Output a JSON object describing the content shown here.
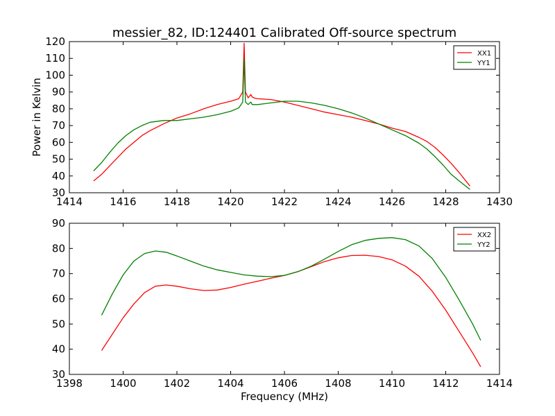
{
  "figure": {
    "title": "messier_82, ID:124401 Calibrated Off-source spectrum"
  },
  "chart_data": [
    {
      "type": "line",
      "title": "messier_82, ID:124401 Calibrated Off-source spectrum",
      "xlabel": "",
      "ylabel": "Power in Kelvin",
      "xlim": [
        1414,
        1430
      ],
      "ylim": [
        30,
        120
      ],
      "xticks": [
        1414,
        1416,
        1418,
        1420,
        1422,
        1424,
        1426,
        1428,
        1430
      ],
      "yticks": [
        30,
        40,
        50,
        60,
        70,
        80,
        90,
        100,
        110,
        120
      ],
      "grid": false,
      "legend_position": "top-right",
      "series": [
        {
          "name": "XX1",
          "color": "#ff0000",
          "x": [
            1414.9,
            1415.2,
            1415.5,
            1415.8,
            1416.1,
            1416.4,
            1416.7,
            1417.0,
            1417.5,
            1418.0,
            1418.5,
            1419.0,
            1419.5,
            1420.0,
            1420.3,
            1420.45,
            1420.5,
            1420.55,
            1420.65,
            1420.75,
            1420.8,
            1420.9,
            1421.0,
            1421.5,
            1422.0,
            1422.5,
            1423.0,
            1423.5,
            1424.0,
            1424.5,
            1425.0,
            1425.5,
            1426.0,
            1426.5,
            1427.0,
            1427.3,
            1427.6,
            1427.9,
            1428.2,
            1428.5,
            1428.9
          ],
          "values": [
            37,
            41,
            46,
            51,
            56,
            60,
            64,
            67,
            71,
            74.5,
            77,
            80,
            82.5,
            84.5,
            86,
            90,
            119,
            90,
            86.5,
            88.5,
            87,
            86.3,
            86,
            85.5,
            84,
            82,
            80,
            78,
            76.5,
            75,
            73,
            71,
            68.5,
            66.5,
            63,
            60.5,
            57,
            52.5,
            47.5,
            42,
            34
          ]
        },
        {
          "name": "YY1",
          "color": "#008000",
          "x": [
            1414.9,
            1415.2,
            1415.5,
            1415.8,
            1416.1,
            1416.4,
            1416.7,
            1417.0,
            1417.5,
            1418.0,
            1418.5,
            1419.0,
            1419.5,
            1420.0,
            1420.3,
            1420.45,
            1420.5,
            1420.55,
            1420.65,
            1420.75,
            1420.8,
            1420.9,
            1421.0,
            1421.5,
            1422.0,
            1422.5,
            1423.0,
            1423.5,
            1424.0,
            1424.5,
            1425.0,
            1425.5,
            1426.0,
            1426.5,
            1427.0,
            1427.3,
            1427.6,
            1427.9,
            1428.2,
            1428.5,
            1428.9
          ],
          "values": [
            43,
            48,
            54,
            59.5,
            64,
            67.5,
            70,
            72,
            73,
            73,
            74,
            75,
            76.5,
            78.5,
            80.5,
            84,
            110,
            84,
            82.5,
            84,
            82.5,
            82.5,
            82.5,
            83.5,
            84.5,
            84.5,
            83.5,
            82,
            80,
            77.5,
            74.5,
            71,
            67.5,
            64,
            59.5,
            56,
            51.5,
            46.5,
            41,
            37,
            32
          ]
        }
      ]
    },
    {
      "type": "line",
      "title": "",
      "xlabel": "Frequency (MHz)",
      "ylabel": "",
      "xlim": [
        1398,
        1414
      ],
      "ylim": [
        30,
        90
      ],
      "xticks": [
        1398,
        1400,
        1402,
        1404,
        1406,
        1408,
        1410,
        1412,
        1414
      ],
      "yticks": [
        30,
        40,
        50,
        60,
        70,
        80,
        90
      ],
      "grid": false,
      "legend_position": "top-right",
      "series": [
        {
          "name": "XX2",
          "color": "#ff0000",
          "x": [
            1399.2,
            1399.6,
            1400.0,
            1400.4,
            1400.8,
            1401.2,
            1401.6,
            1402.0,
            1402.5,
            1403.0,
            1403.5,
            1404.0,
            1404.5,
            1405.0,
            1405.5,
            1406.0,
            1406.5,
            1407.0,
            1407.5,
            1408.0,
            1408.5,
            1409.0,
            1409.5,
            1410.0,
            1410.5,
            1411.0,
            1411.5,
            1412.0,
            1412.5,
            1413.0,
            1413.3
          ],
          "values": [
            39.5,
            46,
            52.5,
            58,
            62.5,
            65,
            65.5,
            65,
            64,
            63.3,
            63.5,
            64.5,
            65.8,
            67,
            68.2,
            69.3,
            70.8,
            72.8,
            74.8,
            76.3,
            77.2,
            77.3,
            76.8,
            75.5,
            73,
            69,
            63,
            55.5,
            47,
            38.5,
            33
          ]
        },
        {
          "name": "YY2",
          "color": "#008000",
          "x": [
            1399.2,
            1399.6,
            1400.0,
            1400.4,
            1400.8,
            1401.2,
            1401.6,
            1402.0,
            1402.5,
            1403.0,
            1403.5,
            1404.0,
            1404.5,
            1405.0,
            1405.5,
            1406.0,
            1406.5,
            1407.0,
            1407.5,
            1408.0,
            1408.5,
            1409.0,
            1409.5,
            1410.0,
            1410.5,
            1411.0,
            1411.5,
            1412.0,
            1412.5,
            1413.0,
            1413.3
          ],
          "values": [
            53.5,
            62,
            69.5,
            75,
            78,
            79,
            78.5,
            77,
            75,
            73,
            71.5,
            70.5,
            69.5,
            69,
            68.8,
            69.3,
            70.8,
            73,
            75.8,
            78.8,
            81.5,
            83.2,
            84,
            84.3,
            83.5,
            81,
            76,
            68.5,
            59.5,
            50,
            43.5
          ]
        }
      ]
    }
  ]
}
